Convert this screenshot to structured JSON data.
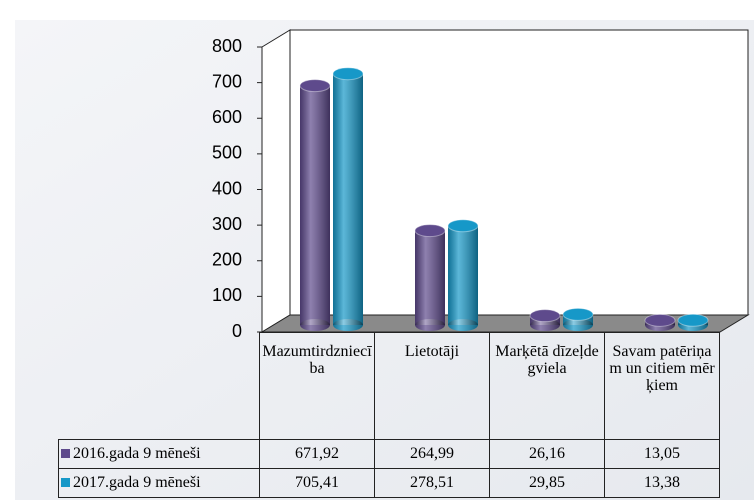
{
  "chart_data": {
    "type": "bar3d",
    "categories": [
      "Mazumtirdzniecība",
      "Lietotāji",
      "Marķētā dīzeļdegviela",
      "Savam patēriņam un citiem mērķiem"
    ],
    "series": [
      {
        "name": "2016.gada 9 mēneši",
        "color": "#5e4a8c",
        "values": [
          671.92,
          264.99,
          26.16,
          13.05
        ],
        "value_labels": [
          "671,92",
          "264,99",
          "26,16",
          "13,05"
        ]
      },
      {
        "name": "2017.gada 9 mēneši",
        "color": "#1698c8",
        "values": [
          705.41,
          278.51,
          29.85,
          13.38
        ],
        "value_labels": [
          "705,41",
          "278,51",
          "29,85",
          "13,38"
        ]
      }
    ],
    "ylim": [
      0,
      800
    ],
    "yticks": [
      0,
      100,
      200,
      300,
      400,
      500,
      600,
      700,
      800
    ],
    "grid": false,
    "legend": "table"
  }
}
